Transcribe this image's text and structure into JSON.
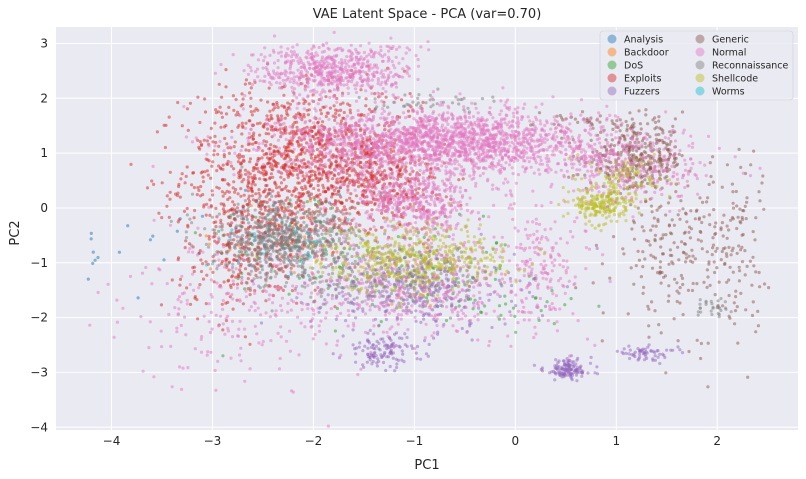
{
  "chart_data": {
    "type": "scatter",
    "title": "VAE Latent Space - PCA (var=0.70)",
    "xlabel": "PC1",
    "ylabel": "PC2",
    "xlim": [
      -4.55,
      2.8
    ],
    "ylim": [
      -4.05,
      3.3
    ],
    "xticks": [
      -4,
      -3,
      -2,
      -1,
      0,
      1,
      2
    ],
    "yticks": [
      -4,
      -3,
      -2,
      -1,
      0,
      1,
      2,
      3
    ],
    "tick_labels_x": [
      "−4",
      "−3",
      "−2",
      "−1",
      "0",
      "1",
      "2"
    ],
    "tick_labels_y": [
      "−4",
      "−3",
      "−2",
      "−1",
      "0",
      "1",
      "2",
      "3"
    ],
    "grid": true,
    "legend_position": "top-right",
    "legend_columns": 2,
    "series": [
      {
        "name": "Analysis",
        "color": "#1f77b4",
        "clusters": [
          {
            "cx": -2.4,
            "cy": -0.4,
            "sx": 0.5,
            "sy": 0.5,
            "n": 40
          },
          {
            "cx": -3.8,
            "cy": -1.0,
            "sx": 0.3,
            "sy": 0.4,
            "n": 14
          }
        ]
      },
      {
        "name": "Backdoor",
        "color": "#ff7f0e",
        "clusters": [
          {
            "cx": -2.3,
            "cy": -0.5,
            "sx": 0.4,
            "sy": 0.4,
            "n": 30
          },
          {
            "cx": -1.0,
            "cy": -1.3,
            "sx": 0.5,
            "sy": 0.4,
            "n": 20
          }
        ]
      },
      {
        "name": "DoS",
        "color": "#2ca02c",
        "clusters": [
          {
            "cx": -2.2,
            "cy": -0.6,
            "sx": 0.45,
            "sy": 0.5,
            "n": 80
          },
          {
            "cx": -1.0,
            "cy": -1.2,
            "sx": 0.5,
            "sy": 0.45,
            "n": 90
          },
          {
            "cx": 0.2,
            "cy": -1.8,
            "sx": 0.3,
            "sy": 0.3,
            "n": 25
          }
        ]
      },
      {
        "name": "Exploits",
        "color": "#d62728",
        "clusters": [
          {
            "cx": -2.4,
            "cy": 0.6,
            "sx": 0.45,
            "sy": 0.8,
            "n": 900
          },
          {
            "cx": -1.7,
            "cy": 1.0,
            "sx": 0.4,
            "sy": 0.6,
            "n": 500
          },
          {
            "cx": -1.3,
            "cy": 0.4,
            "sx": 0.3,
            "sy": 0.4,
            "n": 250
          },
          {
            "cx": -2.7,
            "cy": -0.9,
            "sx": 0.3,
            "sy": 0.5,
            "n": 200
          }
        ]
      },
      {
        "name": "Fuzzers",
        "color": "#9467bd",
        "clusters": [
          {
            "cx": -1.0,
            "cy": -1.5,
            "sx": 0.5,
            "sy": 0.35,
            "n": 350
          },
          {
            "cx": -1.3,
            "cy": -2.6,
            "sx": 0.2,
            "sy": 0.15,
            "n": 120
          },
          {
            "cx": 0.52,
            "cy": -2.95,
            "sx": 0.12,
            "sy": 0.1,
            "n": 130
          },
          {
            "cx": 1.3,
            "cy": -2.65,
            "sx": 0.15,
            "sy": 0.06,
            "n": 60
          }
        ]
      },
      {
        "name": "Generic",
        "color": "#8c564b",
        "clusters": [
          {
            "cx": 1.2,
            "cy": 0.9,
            "sx": 0.25,
            "sy": 0.3,
            "n": 350
          },
          {
            "cx": 1.6,
            "cy": -0.8,
            "sx": 0.3,
            "sy": 0.7,
            "n": 220
          },
          {
            "cx": 2.2,
            "cy": -0.5,
            "sx": 0.15,
            "sy": 0.8,
            "n": 90
          },
          {
            "cx": 0.8,
            "cy": 1.6,
            "sx": 0.3,
            "sy": 0.1,
            "n": 40
          }
        ]
      },
      {
        "name": "Normal",
        "color": "#e377c2",
        "clusters": [
          {
            "cx": -0.7,
            "cy": 1.2,
            "sx": 0.8,
            "sy": 0.3,
            "n": 2000
          },
          {
            "cx": -1.8,
            "cy": 2.5,
            "sx": 0.4,
            "sy": 0.25,
            "n": 600
          },
          {
            "cx": -1.0,
            "cy": 0.1,
            "sx": 0.3,
            "sy": 0.3,
            "n": 500
          },
          {
            "cx": -1.0,
            "cy": -1.4,
            "sx": 0.6,
            "sy": 0.5,
            "n": 500
          },
          {
            "cx": -2.8,
            "cy": -1.8,
            "sx": 0.5,
            "sy": 0.7,
            "n": 200
          },
          {
            "cx": 0.3,
            "cy": -1.0,
            "sx": 0.2,
            "sy": 0.6,
            "n": 150
          },
          {
            "cx": 1.2,
            "cy": 0.7,
            "sx": 0.4,
            "sy": 0.3,
            "n": 250
          }
        ]
      },
      {
        "name": "Reconnaissance",
        "color": "#7f7f7f",
        "clusters": [
          {
            "cx": -2.3,
            "cy": -0.6,
            "sx": 0.35,
            "sy": 0.35,
            "n": 650
          },
          {
            "cx": -1.1,
            "cy": -1.3,
            "sx": 0.45,
            "sy": 0.3,
            "n": 200
          },
          {
            "cx": -0.8,
            "cy": 1.95,
            "sx": 0.3,
            "sy": 0.08,
            "n": 40
          },
          {
            "cx": 1.95,
            "cy": -1.8,
            "sx": 0.1,
            "sy": 0.1,
            "n": 30
          }
        ]
      },
      {
        "name": "Shellcode",
        "color": "#bcbd22",
        "clusters": [
          {
            "cx": -1.0,
            "cy": -0.9,
            "sx": 0.45,
            "sy": 0.3,
            "n": 450
          },
          {
            "cx": 0.85,
            "cy": 0.05,
            "sx": 0.15,
            "sy": 0.15,
            "n": 200
          },
          {
            "cx": 1.1,
            "cy": 0.5,
            "sx": 0.2,
            "sy": 0.2,
            "n": 90
          }
        ]
      },
      {
        "name": "Worms",
        "color": "#17becf",
        "clusters": [
          {
            "cx": -2.3,
            "cy": -0.5,
            "sx": 0.4,
            "sy": 0.4,
            "n": 20
          }
        ]
      }
    ]
  }
}
